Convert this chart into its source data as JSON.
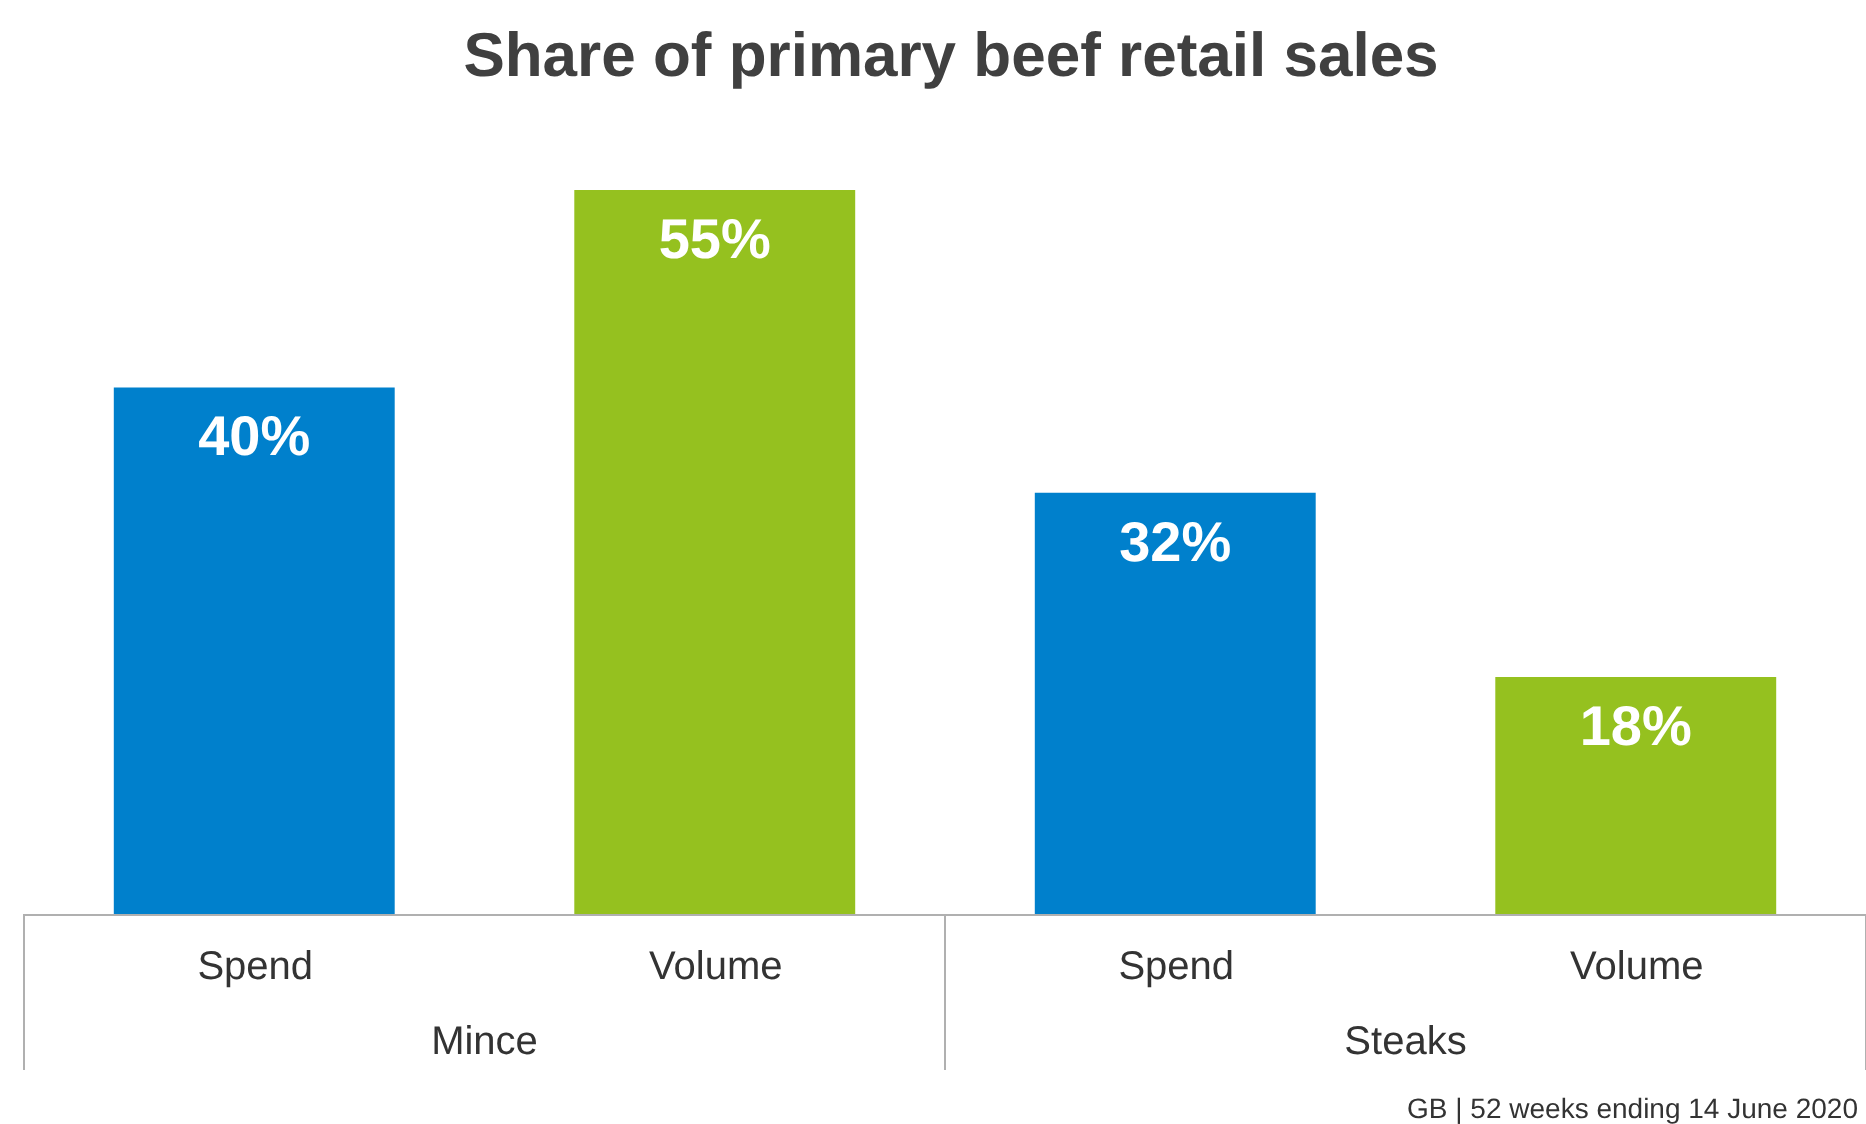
{
  "chart_data": {
    "type": "bar",
    "title": "Share of primary beef retail sales",
    "categories": [
      "Spend",
      "Volume",
      "Spend",
      "Volume"
    ],
    "values": [
      40,
      55,
      32,
      18
    ],
    "colors": [
      "#0080cc",
      "#95c11f",
      "#0080cc",
      "#95c11f"
    ],
    "value_labels": [
      "40%",
      "55%",
      "32%",
      "18%"
    ],
    "annotations": [
      "Mince",
      "Steaks",
      "GB  | 52 weeks ending 14 June 2020"
    ],
    "grid": false
  }
}
